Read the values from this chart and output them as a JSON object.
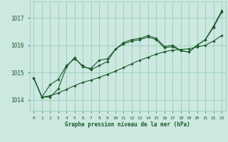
{
  "title": "Graphe pression niveau de la mer (hPa)",
  "background_color": "#cce8e0",
  "grid_color": "#99ccbb",
  "line_color": "#1a5c2a",
  "x_labels": [
    "0",
    "1",
    "2",
    "3",
    "4",
    "5",
    "6",
    "7",
    "8",
    "9",
    "10",
    "11",
    "12",
    "13",
    "14",
    "15",
    "16",
    "17",
    "18",
    "19",
    "20",
    "21",
    "22",
    "23"
  ],
  "ylim": [
    1013.6,
    1017.6
  ],
  "yticks": [
    1014,
    1015,
    1016,
    1017
  ],
  "series1": [
    1014.8,
    1014.1,
    1014.1,
    1014.4,
    1015.2,
    1015.55,
    1015.2,
    1015.15,
    1015.45,
    1015.5,
    1015.85,
    1016.1,
    1016.2,
    1016.25,
    1016.35,
    1016.25,
    1015.95,
    1016.0,
    1015.8,
    1015.75,
    1016.0,
    1016.2,
    1016.7,
    1017.25
  ],
  "series2": [
    1014.8,
    1014.1,
    1014.55,
    1014.75,
    1015.25,
    1015.5,
    1015.25,
    1015.1,
    1015.25,
    1015.4,
    1015.85,
    1016.05,
    1016.15,
    1016.2,
    1016.3,
    1016.2,
    1015.9,
    1015.95,
    1015.8,
    1015.75,
    1016.0,
    1016.2,
    1016.65,
    1017.2
  ],
  "series3": [
    1014.8,
    1014.1,
    1014.15,
    1014.25,
    1014.38,
    1014.52,
    1014.64,
    1014.72,
    1014.82,
    1014.93,
    1015.05,
    1015.18,
    1015.32,
    1015.45,
    1015.56,
    1015.67,
    1015.76,
    1015.82,
    1015.84,
    1015.87,
    1015.93,
    1016.0,
    1016.15,
    1016.35
  ]
}
